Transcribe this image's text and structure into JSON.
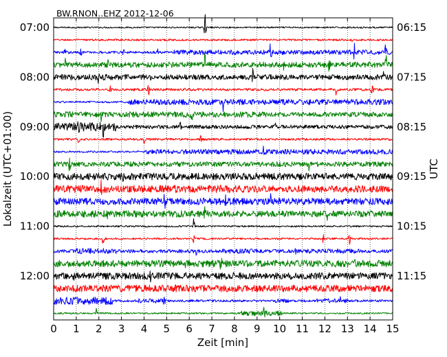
{
  "chart_data": {
    "type": "line",
    "title": "BW.RNON..EHZ 2012-12-06",
    "xlabel": "Zeit  [min]",
    "ylabel_left": "Lokalzeit (UTC+01:00)",
    "ylabel_right": "UTC",
    "xlim": [
      0,
      15
    ],
    "x_ticks": [
      "0",
      "1",
      "2",
      "3",
      "4",
      "5",
      "6",
      "7",
      "8",
      "9",
      "10",
      "11",
      "12",
      "13",
      "14",
      "15"
    ],
    "left_ticks": [
      {
        "label": "07:00",
        "trace": 0
      },
      {
        "label": "08:00",
        "trace": 4
      },
      {
        "label": "09:00",
        "trace": 8
      },
      {
        "label": "10:00",
        "trace": 12
      },
      {
        "label": "11:00",
        "trace": 16
      },
      {
        "label": "12:00",
        "trace": 20
      }
    ],
    "right_ticks": [
      {
        "label": "06:15",
        "trace": 0
      },
      {
        "label": "07:15",
        "trace": 4
      },
      {
        "label": "08:15",
        "trace": 8
      },
      {
        "label": "09:15",
        "trace": 12
      },
      {
        "label": "10:15",
        "trace": 16
      },
      {
        "label": "11:15",
        "trace": 20
      }
    ],
    "trace_count": 24,
    "trace_minutes": 15,
    "series_colors": [
      "#000000",
      "#ff0000",
      "#0000ff",
      "#008000"
    ],
    "grid": "vertical-dotted",
    "traces": [
      {
        "index": 0,
        "color": "#000000",
        "amplitude": 0.12,
        "spikes": [
          [
            6.7,
            1.8
          ]
        ]
      },
      {
        "index": 1,
        "color": "#ff0000",
        "amplitude": 0.15,
        "spikes": [
          [
            13.2,
            0.8
          ]
        ]
      },
      {
        "index": 2,
        "color": "#0000ff",
        "amplitude": 0.2,
        "segments": [
          [
            5.3,
            15,
            0.38
          ]
        ],
        "spikes": [
          [
            0.5,
            0.7
          ],
          [
            1.2,
            0.6
          ],
          [
            3.1,
            0.8
          ],
          [
            4.6,
            0.7
          ],
          [
            9.6,
            1.2
          ],
          [
            13.3,
            1.1
          ],
          [
            14.7,
            1.0
          ]
        ]
      },
      {
        "index": 3,
        "color": "#008000",
        "amplitude": 0.45,
        "segments": [
          [
            0,
            5.3,
            0.45
          ],
          [
            5.3,
            15,
            0.32
          ]
        ],
        "spikes": [
          [
            0.5,
            1.2
          ],
          [
            2.4,
            1.3
          ],
          [
            6.7,
            1.5
          ],
          [
            10.2,
            1.1
          ],
          [
            12.2,
            0.9
          ],
          [
            14.7,
            1.2
          ]
        ]
      },
      {
        "index": 4,
        "color": "#000000",
        "amplitude": 0.42,
        "segments": [
          [
            0,
            5.2,
            0.48
          ],
          [
            5.2,
            15,
            0.28
          ]
        ],
        "spikes": [
          [
            2.0,
            0.9
          ],
          [
            8.8,
            1.0
          ],
          [
            14.6,
            0.8
          ]
        ]
      },
      {
        "index": 5,
        "color": "#ff0000",
        "amplitude": 0.2,
        "spikes": [
          [
            2.5,
            0.9
          ],
          [
            4.2,
            0.7
          ],
          [
            12.5,
            0.8
          ],
          [
            14.1,
            0.7
          ]
        ]
      },
      {
        "index": 6,
        "color": "#0000ff",
        "amplitude": 0.15,
        "segments": [
          [
            3.3,
            15,
            0.45
          ]
        ],
        "spikes": [
          [
            7.5,
            0.9
          ]
        ]
      },
      {
        "index": 7,
        "color": "#008000",
        "amplitude": 0.35,
        "segments": [
          [
            0,
            9.4,
            0.45
          ],
          [
            11.0,
            15,
            0.38
          ]
        ],
        "spikes": [
          [
            2.1,
            1.0
          ],
          [
            6.1,
            0.9
          ]
        ]
      },
      {
        "index": 8,
        "color": "#000000",
        "amplitude": 0.3,
        "segments": [
          [
            0,
            2.8,
            0.7
          ]
        ],
        "spikes": [
          [
            1.1,
            1.2
          ],
          [
            2.2,
            1.1
          ],
          [
            5.6,
            0.8
          ],
          [
            9.8,
            0.7
          ]
        ]
      },
      {
        "index": 9,
        "color": "#ff0000",
        "amplitude": 0.18,
        "spikes": [
          [
            1.1,
            0.8
          ],
          [
            4.0,
            0.7
          ],
          [
            6.5,
            0.6
          ]
        ]
      },
      {
        "index": 10,
        "color": "#0000ff",
        "amplitude": 0.15,
        "segments": [
          [
            4.1,
            15,
            0.4
          ]
        ],
        "spikes": [
          [
            4.1,
            0.8
          ],
          [
            9.3,
            0.7
          ]
        ]
      },
      {
        "index": 11,
        "color": "#008000",
        "amplitude": 0.4,
        "spikes": [
          [
            0.7,
            0.9
          ],
          [
            11.3,
            0.7
          ]
        ]
      },
      {
        "index": 12,
        "color": "#000000",
        "amplitude": 0.45,
        "segments": [
          [
            0,
            15,
            0.55
          ]
        ],
        "spikes": [
          [
            3.1,
            0.9
          ],
          [
            9.0,
            0.8
          ]
        ]
      },
      {
        "index": 13,
        "color": "#ff0000",
        "amplitude": 0.55,
        "segments": [
          [
            0,
            8.6,
            0.6
          ],
          [
            8.6,
            13.2,
            0.4
          ],
          [
            13.2,
            15,
            0.55
          ]
        ],
        "spikes": [
          [
            2.1,
            0.8
          ],
          [
            5.4,
            0.7
          ]
        ]
      },
      {
        "index": 14,
        "color": "#0000ff",
        "amplitude": 0.55,
        "segments": [
          [
            0,
            15,
            0.55
          ]
        ],
        "spikes": [
          [
            4.9,
            0.8
          ],
          [
            7.6,
            0.7
          ],
          [
            9.6,
            0.8
          ]
        ]
      },
      {
        "index": 15,
        "color": "#008000",
        "amplitude": 0.5,
        "segments": [
          [
            0,
            7.0,
            0.55
          ],
          [
            7.0,
            15,
            0.25
          ]
        ],
        "spikes": [
          [
            2.4,
            0.9
          ],
          [
            6.7,
            0.8
          ],
          [
            12.1,
            0.6
          ]
        ]
      },
      {
        "index": 16,
        "color": "#000000",
        "amplitude": 0.13,
        "spikes": [
          [
            6.2,
            1.4
          ],
          [
            4.1,
            0.5
          ]
        ]
      },
      {
        "index": 17,
        "color": "#ff0000",
        "amplitude": 0.15,
        "spikes": [
          [
            2.2,
            1.0
          ],
          [
            11.9,
            0.9
          ],
          [
            13.1,
            0.8
          ],
          [
            6.2,
            0.6
          ]
        ]
      },
      {
        "index": 18,
        "color": "#0000ff",
        "amplitude": 0.28,
        "segments": [
          [
            1.0,
            2.8,
            0.45
          ],
          [
            7.4,
            9.0,
            0.4
          ],
          [
            11.2,
            13.5,
            0.35
          ]
        ],
        "spikes": [
          [
            6.3,
            0.8
          ],
          [
            10.7,
            0.7
          ]
        ]
      },
      {
        "index": 19,
        "color": "#008000",
        "amplitude": 0.5,
        "segments": [
          [
            0,
            15,
            0.55
          ]
        ],
        "spikes": [
          [
            5.8,
            0.8
          ],
          [
            7.4,
            0.9
          ],
          [
            13.3,
            0.7
          ]
        ]
      },
      {
        "index": 20,
        "color": "#000000",
        "amplitude": 0.45,
        "segments": [
          [
            0,
            15,
            0.55
          ]
        ],
        "spikes": [
          [
            0.9,
            0.8
          ],
          [
            4.3,
            0.7
          ]
        ]
      },
      {
        "index": 21,
        "color": "#ff0000",
        "amplitude": 0.55,
        "segments": [
          [
            0,
            15,
            0.55
          ]
        ],
        "spikes": [
          [
            5.4,
            0.7
          ]
        ]
      },
      {
        "index": 22,
        "color": "#0000ff",
        "amplitude": 0.18,
        "segments": [
          [
            0,
            2.6,
            0.6
          ],
          [
            3.6,
            5.1,
            0.35
          ],
          [
            9.6,
            10.4,
            0.3
          ],
          [
            11.6,
            13.0,
            0.35
          ]
        ],
        "spikes": [
          [
            4.9,
            0.7
          ],
          [
            12.7,
            0.6
          ]
        ]
      },
      {
        "index": 23,
        "color": "#008000",
        "amplitude": 0.13,
        "segments": [
          [
            8.3,
            10.1,
            0.4
          ]
        ],
        "spikes": [
          [
            1.9,
            0.9
          ],
          [
            9.3,
            0.5
          ]
        ]
      }
    ]
  }
}
